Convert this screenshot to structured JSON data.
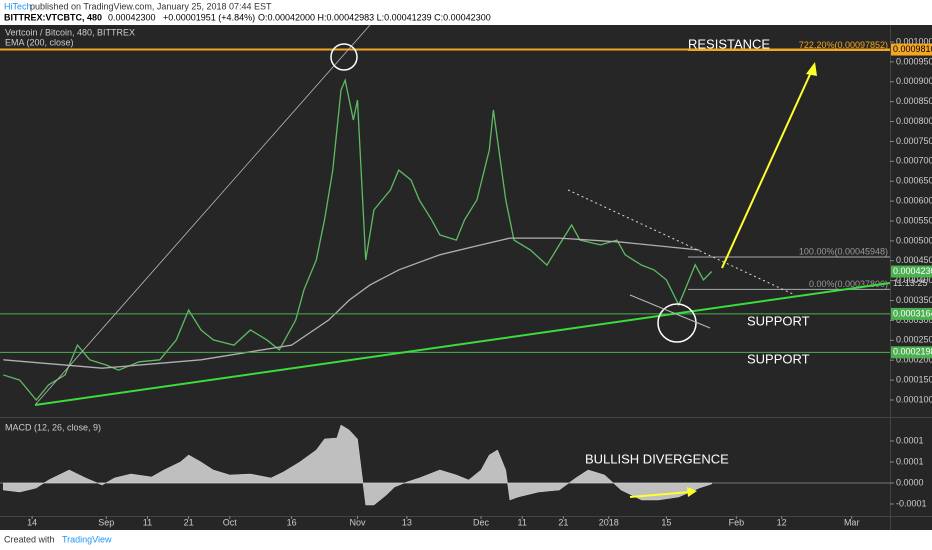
{
  "header": {
    "author": "HiTech",
    "published": "published on TradingView.com, January 25, 2018 07:44 EST",
    "symbol": "BITTREX:VTCBTC, 480",
    "last": "0.00042300",
    "change": "+0.00001951 (+4.84%)",
    "ohlc": "O:0.00042000 H:0.00042983 L:0.00041239 C:0.00042300"
  },
  "footer": {
    "created": "Created with",
    "brand": "TradingView"
  },
  "annotations": {
    "resistance": "RESISTANCE",
    "support1": "SUPPORT",
    "support2": "SUPPORT",
    "divergence": "BULLISH DIVERGENCE",
    "countdown": "11:13:25"
  },
  "chart_data": [
    {
      "type": "line",
      "xlim": [
        -7.8,
        208.3
      ],
      "ylim": [
        6.23e-05,
        0.0010427
      ],
      "xticks": [
        {
          "value": 0,
          "label": "14"
        },
        {
          "value": 18,
          "label": "Sep"
        },
        {
          "value": 28,
          "label": "11"
        },
        {
          "value": 38,
          "label": "21"
        },
        {
          "value": 48,
          "label": "Oct"
        },
        {
          "value": 63,
          "label": "16"
        },
        {
          "value": 79,
          "label": "Nov"
        },
        {
          "value": 91,
          "label": "13"
        },
        {
          "value": 109,
          "label": "Dec"
        },
        {
          "value": 119,
          "label": "11"
        },
        {
          "value": 129,
          "label": "21"
        },
        {
          "value": 140,
          "label": "2018"
        },
        {
          "value": 154,
          "label": "15"
        },
        {
          "value": 171,
          "label": "Feb"
        },
        {
          "value": 182,
          "label": "12"
        },
        {
          "value": 199,
          "label": "Mar"
        }
      ],
      "yticks": [
        {
          "value": 0.0001,
          "label": "0.00010000"
        },
        {
          "value": 0.00015,
          "label": "0.00015000"
        },
        {
          "value": 0.0002,
          "label": "0.00020000"
        },
        {
          "value": 0.00025,
          "label": "0.00025000"
        },
        {
          "value": 0.0003,
          "label": "0.00030000"
        },
        {
          "value": 0.00035,
          "label": "0.00035000"
        },
        {
          "value": 0.0004,
          "label": "0.00040000"
        },
        {
          "value": 0.00045,
          "label": "0.00045000"
        },
        {
          "value": 0.0005,
          "label": "0.00050000"
        },
        {
          "value": 0.00055,
          "label": "0.00055000"
        },
        {
          "value": 0.0006,
          "label": "0.00060000"
        },
        {
          "value": 0.00065,
          "label": "0.00065000"
        },
        {
          "value": 0.0007,
          "label": "0.00070000"
        },
        {
          "value": 0.00075,
          "label": "0.00075000"
        },
        {
          "value": 0.0008,
          "label": "0.00080000"
        },
        {
          "value": 0.00085,
          "label": "0.00085000"
        },
        {
          "value": 0.0009,
          "label": "0.00090000"
        },
        {
          "value": 0.00095,
          "label": "0.00095000"
        },
        {
          "value": 0.001,
          "label": "0.00100000"
        }
      ],
      "series": [
        {
          "name": "Vertcoin / Bitcoin, 480, BITTREX",
          "color": "#5dbb63",
          "x": [
            -7,
            -3,
            1,
            4,
            8,
            11,
            14,
            18,
            21,
            26,
            31,
            35,
            38,
            41,
            44,
            49,
            53,
            57,
            60,
            64,
            66,
            69,
            71,
            73,
            75,
            76,
            78,
            79,
            81,
            83,
            87,
            89,
            92,
            94,
            97,
            99,
            103,
            105,
            108,
            111,
            112,
            115,
            117,
            121,
            125,
            128,
            131,
            133,
            138,
            142,
            144,
            148,
            151,
            154,
            157,
            159,
            161,
            163,
            165
          ],
          "values": [
            0.000163,
            0.00015,
            0.0001,
            0.000138,
            0.000163,
            0.000238,
            0.000201,
            0.000188,
            0.000175,
            0.000196,
            0.000201,
            0.000251,
            0.000326,
            0.000276,
            0.000251,
            0.000238,
            0.000276,
            0.000251,
            0.000226,
            0.000301,
            0.000377,
            0.000452,
            0.000553,
            0.000678,
            0.000879,
            0.000904,
            0.000804,
            0.000854,
            0.000452,
            0.000578,
            0.000628,
            0.000678,
            0.000653,
            0.000603,
            0.000553,
            0.000515,
            0.000502,
            0.000553,
            0.000603,
            0.000728,
            0.000829,
            0.000603,
            0.000502,
            0.000477,
            0.000439,
            0.00049,
            0.00054,
            0.000502,
            0.00049,
            0.000502,
            0.000465,
            0.000439,
            0.000427,
            0.000402,
            0.000339,
            0.000389,
            0.00044,
            0.000402,
            0.000423
          ]
        },
        {
          "name": "EMA (200, close)",
          "color": "#b0b0b0",
          "x": [
            -7,
            17,
            41,
            63,
            72,
            77,
            82,
            89,
            99,
            109,
            116,
            128,
            143,
            162
          ],
          "values": [
            0.000201,
            0.00018,
            0.000201,
            0.000238,
            0.000301,
            0.000351,
            0.000389,
            0.000427,
            0.000465,
            0.00049,
            0.000507,
            0.000507,
            0.000497,
            0.000477
          ]
        }
      ],
      "levels": [
        {
          "value": 0.000981,
          "label": "0.00098100",
          "color": "#f5a623"
        },
        {
          "value": 0.0003164,
          "label": "0.00031640",
          "color": "#4caf50"
        },
        {
          "value": 0.00021985,
          "label": "0.00021985",
          "color": "#4caf50"
        }
      ],
      "last_price": {
        "value": 0.000423,
        "label": "0.00042300",
        "color": "#4caf50"
      },
      "fib": [
        {
          "value": 0.00045948,
          "label": "100.00%(0.00045948)"
        },
        {
          "value": 0.000378,
          "label": "0.00%(0.00037800)"
        }
      ],
      "target": {
        "value": 0.00097852,
        "label": "722.20%(0.00097852)",
        "color": "#f5a623"
      }
    },
    {
      "type": "area",
      "xlim": [
        -7.8,
        208.3
      ],
      "ylim": [
        -7.62e-05,
        0.00015
      ],
      "yticks": [
        {
          "value": 0.0001,
          "label": "0.0001"
        },
        {
          "value": 5e-05,
          "label": "0.0001"
        },
        {
          "value": 0,
          "label": "0.0000"
        },
        {
          "value": -5e-05,
          "label": "-0.0001"
        }
      ],
      "series": [
        {
          "name": "MACD (12, 26, close, 9)",
          "color": "#d0d0d0",
          "x": [
            -7,
            -3,
            1,
            4,
            9,
            13,
            17,
            20,
            24,
            29,
            32,
            36,
            38,
            41,
            44,
            48,
            53,
            58,
            61,
            65,
            69,
            71,
            74,
            75,
            77,
            79,
            81,
            83,
            86,
            88,
            91,
            94,
            99,
            103,
            106,
            109,
            111,
            113,
            115,
            116,
            118,
            123,
            128,
            132,
            135,
            139,
            143,
            148,
            152,
            157,
            162,
            165
          ],
          "values": [
            -1.67e-05,
            -2.14e-05,
            -1.19e-05,
            7.1e-06,
            3.1e-05,
            1.19e-05,
            -4.8e-06,
            1.19e-05,
            2.14e-05,
            1.43e-05,
            3.1e-05,
            5e-05,
            6.67e-05,
            5e-05,
            3.1e-05,
            1.9e-05,
            2.14e-05,
            1.19e-05,
            2.62e-05,
            5e-05,
            7.86e-05,
            0.0001048,
            0.0001071,
            0.000138,
            0.000126,
            0.0001048,
            -5.24e-05,
            -5.24e-05,
            -2.86e-05,
            -9.5e-06,
            2.4e-06,
            1.19e-05,
            3.1e-05,
            1.9e-05,
            7.1e-06,
            3.1e-05,
            6.67e-05,
            7.86e-05,
            3.1e-05,
            -4.05e-05,
            -3.33e-05,
            -2.14e-05,
            -1.67e-05,
            1.19e-05,
            3.1e-05,
            1.9e-05,
            -1.67e-05,
            -4.05e-05,
            -4.05e-05,
            -3.33e-05,
            -1.19e-05,
            -2.4e-06
          ]
        }
      ]
    }
  ]
}
